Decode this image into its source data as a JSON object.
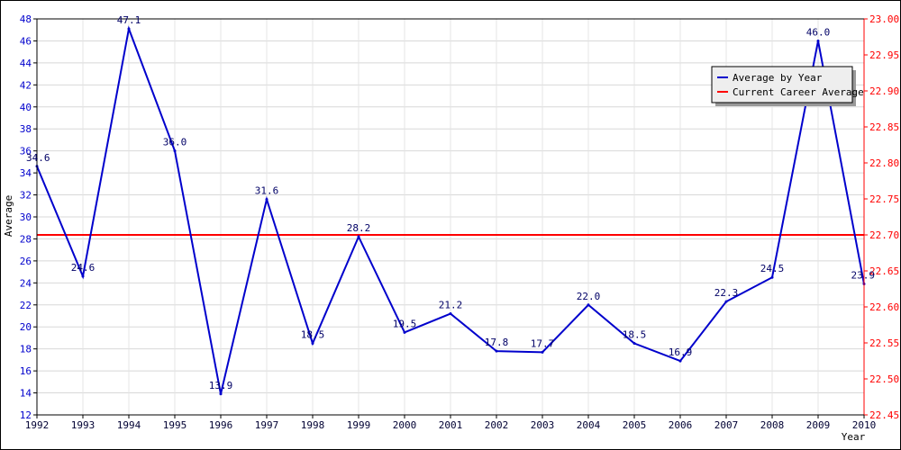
{
  "chart_data": {
    "type": "line",
    "title": "",
    "xlabel": "Year",
    "ylabel": "Average",
    "x": [
      1992,
      1993,
      1994,
      1995,
      1996,
      1997,
      1998,
      1999,
      2000,
      2001,
      2002,
      2003,
      2004,
      2005,
      2006,
      2007,
      2008,
      2009,
      2010
    ],
    "series": [
      {
        "name": "Average by Year",
        "color": "#0000cc",
        "axis": "left",
        "values": [
          34.6,
          24.6,
          47.1,
          36.0,
          13.9,
          31.6,
          18.5,
          28.2,
          19.5,
          21.2,
          17.8,
          17.7,
          22.0,
          18.5,
          16.9,
          22.3,
          24.5,
          46.0,
          23.9
        ],
        "labels": [
          "34.6",
          "24.6",
          "47.1",
          "36.0",
          "13.9",
          "31.6",
          "18.5",
          "28.2",
          "19.5",
          "21.2",
          "17.8",
          "17.7",
          "22.0",
          "18.5",
          "16.9",
          "22.3",
          "24.5",
          "46.0",
          "23.9"
        ]
      },
      {
        "name": "Current Career Average",
        "color": "#ff0000",
        "axis": "right",
        "value": 22.7
      }
    ],
    "ylim": [
      12,
      48
    ],
    "yticks": [
      "12",
      "14",
      "16",
      "18",
      "20",
      "22",
      "24",
      "26",
      "28",
      "30",
      "32",
      "34",
      "36",
      "38",
      "40",
      "42",
      "44",
      "46",
      "48"
    ],
    "y2lim": [
      22.45,
      23.0
    ],
    "y2ticks": [
      "22.45",
      "22.50",
      "22.55",
      "22.60",
      "22.65",
      "22.70",
      "22.75",
      "22.80",
      "22.85",
      "22.90",
      "22.95",
      "23.00"
    ],
    "xticks": [
      "1992",
      "1993",
      "1994",
      "1995",
      "1996",
      "1997",
      "1998",
      "1999",
      "2000",
      "2001",
      "2002",
      "2003",
      "2004",
      "2005",
      "2006",
      "2007",
      "2008",
      "2009",
      "2010"
    ],
    "grid": true,
    "legend_position": "top-right",
    "left_axis_color": "#0000cc",
    "right_axis_color": "#ff0000"
  }
}
